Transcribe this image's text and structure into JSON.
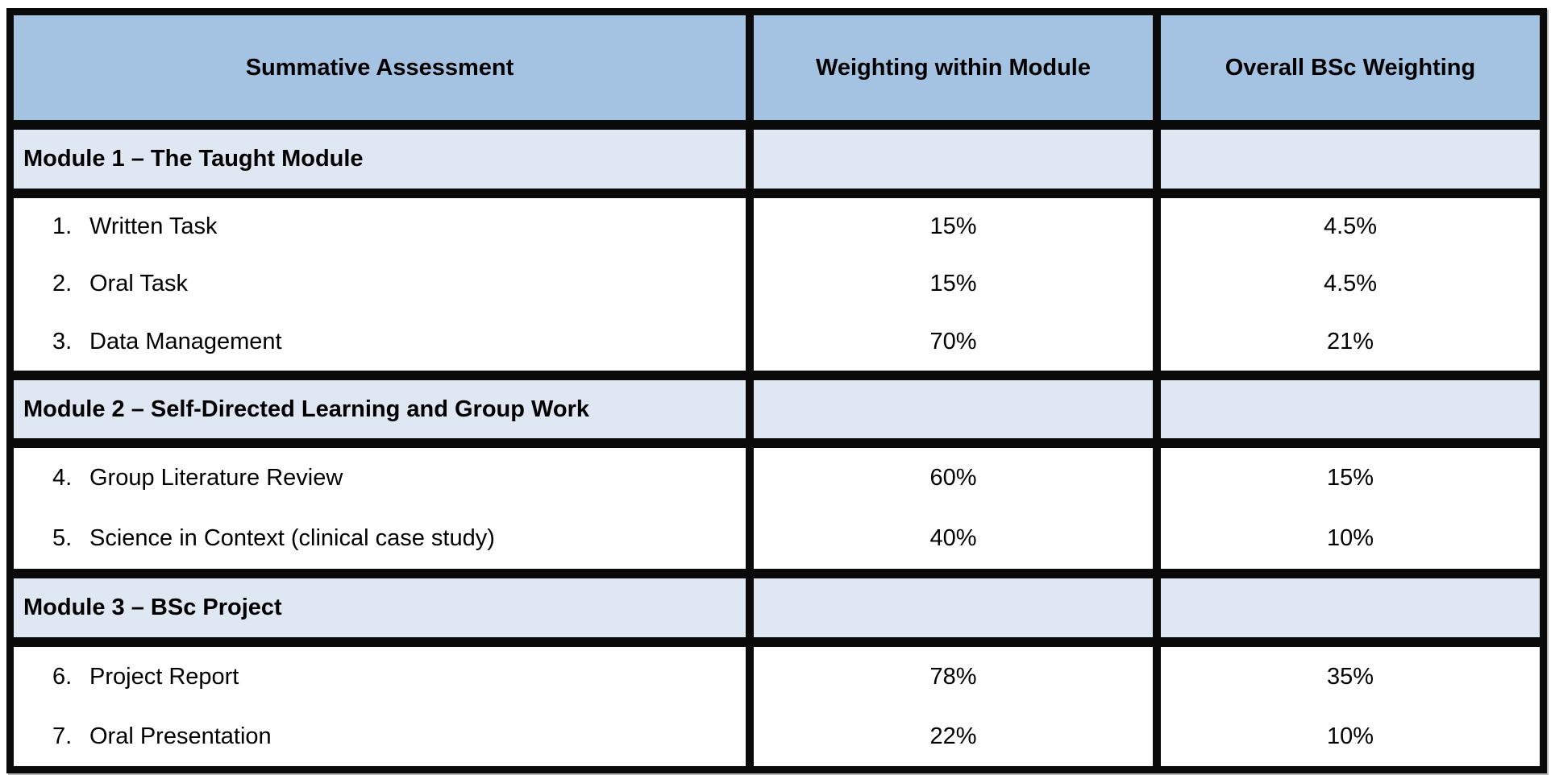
{
  "colors": {
    "header_bg": "#a4c2e2",
    "module_band_bg": "#dfe7f3",
    "cell_bg": "#ffffff",
    "border": "#0a0a0a",
    "text": "#000000"
  },
  "table": {
    "columns": [
      "Summative Assessment",
      "Weighting within Module",
      "Overall BSc Weighting"
    ],
    "sections": [
      {
        "module_title": "Module 1 – The Taught Module",
        "items": [
          {
            "num": "1.",
            "label": "Written Task",
            "weighting_within_module": "15%",
            "overall_bsc_weighting": "4.5%"
          },
          {
            "num": "2.",
            "label": "Oral Task",
            "weighting_within_module": "15%",
            "overall_bsc_weighting": "4.5%"
          },
          {
            "num": "3.",
            "label": "Data Management",
            "weighting_within_module": "70%",
            "overall_bsc_weighting": "21%"
          }
        ]
      },
      {
        "module_title": "Module 2 – Self-Directed Learning and Group Work",
        "items": [
          {
            "num": "4.",
            "label": "Group Literature Review",
            "weighting_within_module": "60%",
            "overall_bsc_weighting": "15%"
          },
          {
            "num": "5.",
            "label": "Science in Context (clinical case study)",
            "weighting_within_module": "40%",
            "overall_bsc_weighting": "10%"
          }
        ]
      },
      {
        "module_title": "Module 3 – BSc Project",
        "items": [
          {
            "num": "6.",
            "label": "Project Report",
            "weighting_within_module": "78%",
            "overall_bsc_weighting": "35%"
          },
          {
            "num": "7.",
            "label": "Oral Presentation",
            "weighting_within_module": "22%",
            "overall_bsc_weighting": "10%"
          }
        ]
      }
    ]
  }
}
